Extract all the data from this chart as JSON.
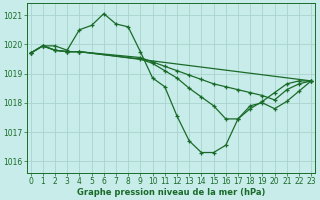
{
  "title": "Graphe pression niveau de la mer (hPa)",
  "bg_color": "#c8ece9",
  "grid_color_major": "#aad4ce",
  "grid_color_minor": "#c0e4e0",
  "line_color": "#1a6b2a",
  "x_ticks": [
    0,
    1,
    2,
    3,
    4,
    5,
    6,
    7,
    8,
    9,
    10,
    11,
    12,
    13,
    14,
    15,
    16,
    17,
    18,
    19,
    20,
    21,
    22,
    23
  ],
  "y_ticks": [
    1016,
    1017,
    1018,
    1019,
    1020,
    1021
  ],
  "ylim": [
    1015.6,
    1021.4
  ],
  "xlim": [
    -0.3,
    23.3
  ],
  "lines": [
    {
      "x": [
        0,
        1,
        2,
        3,
        4,
        5,
        6,
        7,
        8,
        9,
        10,
        11,
        12,
        13,
        14,
        15,
        16,
        17,
        18,
        19,
        20,
        21,
        22,
        23
      ],
      "y": [
        1019.7,
        1019.95,
        1019.95,
        1019.8,
        1020.5,
        1020.65,
        1021.05,
        1020.7,
        1020.6,
        1019.75,
        1018.85,
        1018.55,
        1017.55,
        1016.7,
        1016.3,
        1016.3,
        1016.55,
        1017.45,
        1017.8,
        1018.05,
        1018.35,
        1018.65,
        1018.75,
        1018.75
      ]
    },
    {
      "x": [
        0,
        1,
        2,
        3,
        4,
        23
      ],
      "y": [
        1019.7,
        1019.95,
        1019.8,
        1019.75,
        1019.75,
        1018.75
      ]
    },
    {
      "x": [
        0,
        1,
        2,
        3,
        4,
        9,
        10,
        11,
        12,
        13,
        14,
        15,
        16,
        17,
        18,
        19,
        20,
        21,
        22,
        23
      ],
      "y": [
        1019.7,
        1019.95,
        1019.8,
        1019.75,
        1019.75,
        1019.55,
        1019.4,
        1019.25,
        1019.1,
        1018.95,
        1018.8,
        1018.65,
        1018.55,
        1018.45,
        1018.35,
        1018.25,
        1018.1,
        1018.45,
        1018.65,
        1018.75
      ]
    },
    {
      "x": [
        0,
        1,
        2,
        3,
        4,
        9,
        10,
        11,
        12,
        13,
        14,
        15,
        16,
        17,
        18,
        19,
        20,
        21,
        22,
        23
      ],
      "y": [
        1019.7,
        1019.95,
        1019.8,
        1019.75,
        1019.75,
        1019.5,
        1019.35,
        1019.1,
        1018.85,
        1018.5,
        1018.2,
        1017.9,
        1017.45,
        1017.45,
        1017.9,
        1018.0,
        1017.8,
        1018.05,
        1018.4,
        1018.75
      ]
    }
  ],
  "marker": "+",
  "markersize": 3.5,
  "linewidth": 0.9,
  "tick_fontsize": 5.5,
  "label_fontsize": 6.0
}
